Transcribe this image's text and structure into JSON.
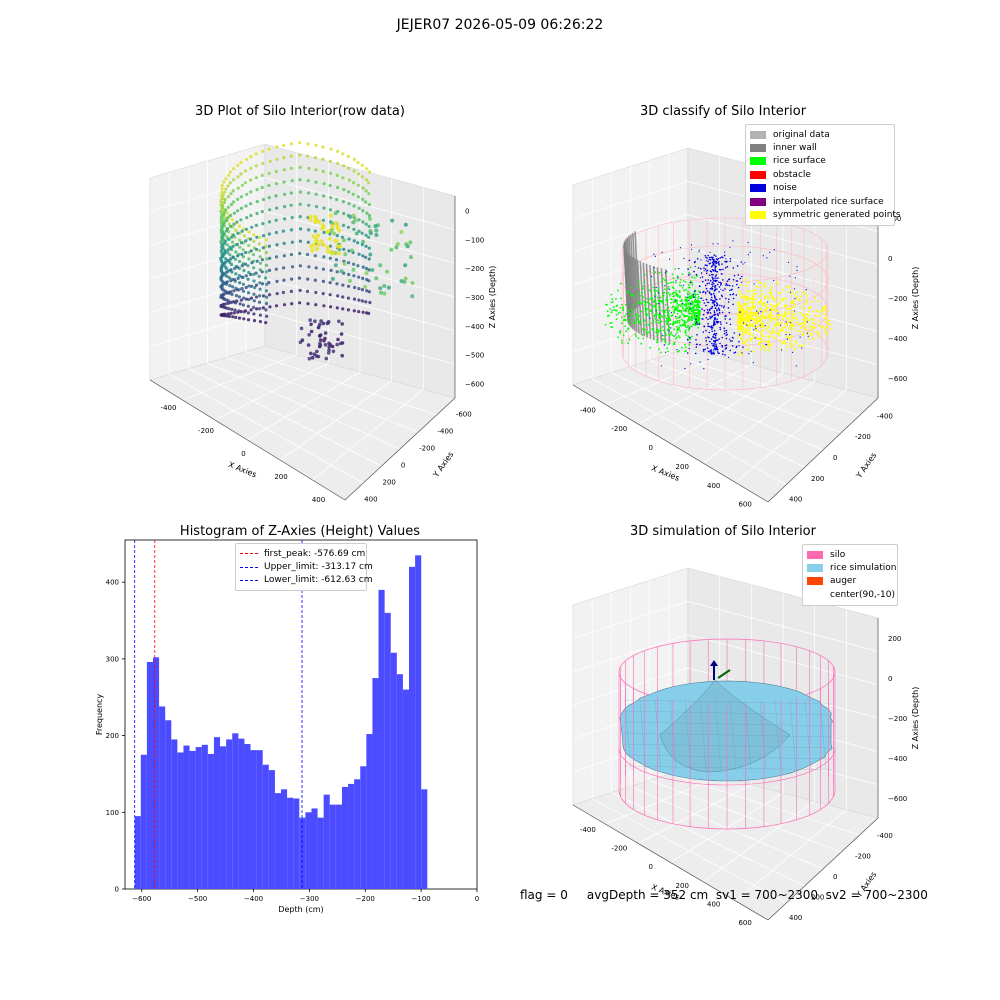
{
  "figure": {
    "suptitle": "JEJER07 2026-05-09 06:26:22",
    "status_text": "flag = 0     avgDepth = 352 cm  sv1 = 700~2300  sv2 = 700~2300"
  },
  "chart_data": [
    {
      "type": "scatter",
      "projection": "3d",
      "title": "3D Plot of Silo Interior(row data)",
      "xlabel": "X Axies",
      "ylabel": "Y Axies",
      "zlabel": "Z Axies (Depth)",
      "xticks": [
        "-400",
        "-200",
        "0",
        "200",
        "400"
      ],
      "yticks": [
        "-600",
        "-400",
        "-200",
        "0",
        "200",
        "400"
      ],
      "zticks": [
        "0",
        "−100",
        "−200",
        "−300",
        "−400",
        "−500",
        "−600"
      ],
      "colormap": "viridis",
      "grid": true
    },
    {
      "type": "scatter",
      "projection": "3d",
      "title": "3D classify of Silo Interior",
      "xlabel": "X Axies",
      "ylabel": "Y Axies",
      "zlabel": "Z Axies (Depth)",
      "xticks": [
        "-400",
        "-200",
        "0",
        "200",
        "400",
        "600"
      ],
      "yticks": [
        "-400",
        "-200",
        "0",
        "200",
        "400"
      ],
      "zticks": [
        "200",
        "0",
        "−200",
        "−400",
        "−600"
      ],
      "legend_position": "top-right",
      "legend": [
        {
          "label": "original data",
          "color": "#b3b3b3"
        },
        {
          "label": "inner wall",
          "color": "#808080"
        },
        {
          "label": "rice surface",
          "color": "#00ff00"
        },
        {
          "label": "obstacle",
          "color": "#ff0000"
        },
        {
          "label": "noise",
          "color": "#0000dd"
        },
        {
          "label": "interpolated rice surface",
          "color": "#800080"
        },
        {
          "label": "symmetric generated points",
          "color": "#ffff00"
        }
      ],
      "wireframe_color": "#ffb6c1",
      "grid": true
    },
    {
      "type": "bar",
      "title": "Histogram of Z-Axies (Height) Values",
      "xlabel": "Depth (cm)",
      "ylabel": "Frequency",
      "xlim": [
        -630,
        0
      ],
      "ylim": [
        0,
        455
      ],
      "xticks": [
        -600,
        -500,
        -400,
        -300,
        -200,
        -100,
        0
      ],
      "yticks": [
        0,
        100,
        200,
        300,
        400
      ],
      "bar_color": "#4b4bff",
      "bin_start": -612.63,
      "bin_width": 10.91,
      "values": [
        95,
        175,
        296,
        302,
        238,
        220,
        195,
        178,
        187,
        180,
        185,
        188,
        176,
        198,
        186,
        195,
        203,
        196,
        189,
        181,
        181,
        162,
        155,
        125,
        130,
        119,
        118,
        93,
        100,
        105,
        93,
        123,
        110,
        110,
        133,
        137,
        143,
        160,
        202,
        275,
        390,
        360,
        308,
        280,
        260,
        420,
        435,
        130
      ],
      "lines": [
        {
          "label": "first_peak: -576.69 cm",
          "x": -576.69,
          "color": "#ff0000"
        },
        {
          "label": "Upper_limit: -313.17 cm",
          "x": -313.17,
          "color": "#0000ff"
        },
        {
          "label": "Lower_limit: -612.63 cm",
          "x": -612.63,
          "color": "#0000ff"
        }
      ],
      "legend_position": "top-center"
    },
    {
      "type": "surface",
      "projection": "3d",
      "title": "3D simulation of Silo Interior",
      "xlabel": "X Axies",
      "ylabel": "Y Axies",
      "zlabel": "Z Axies (Depth)",
      "xticks": [
        "-400",
        "-200",
        "0",
        "200",
        "400",
        "600"
      ],
      "yticks": [
        "-400",
        "-200",
        "0",
        "200",
        "400"
      ],
      "zticks": [
        "200",
        "0",
        "−200",
        "−400",
        "−600"
      ],
      "legend_position": "top-right",
      "legend": [
        {
          "label": "silo",
          "color": "#ff69b4"
        },
        {
          "label": "rice simulation",
          "color": "#87ceeb"
        },
        {
          "label": "auger",
          "color": "#ff4500"
        },
        {
          "label": "center(90,-10)",
          "color": "#ffffff"
        }
      ],
      "surface_color": "#87ceeb",
      "silo_color": "#ff69b4",
      "grid": true
    }
  ]
}
